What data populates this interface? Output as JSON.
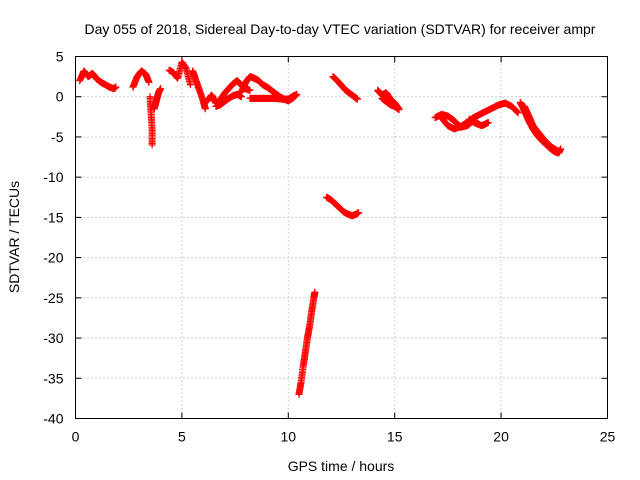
{
  "chart_data": {
    "type": "scatter",
    "title": "Day 055 of 2018, Sidereal Day-to-day VTEC variation (SDTVAR) for receiver ampr",
    "xlabel": "GPS time / hours",
    "ylabel": "SDTVAR / TECUs",
    "xlim": [
      0,
      25
    ],
    "ylim": [
      -40,
      5
    ],
    "xticks": [
      0,
      5,
      10,
      15,
      20,
      25
    ],
    "yticks": [
      5,
      0,
      -5,
      -10,
      -15,
      -20,
      -25,
      -30,
      -35,
      -40
    ],
    "xtick_labels": [
      "0",
      "5",
      "10",
      "15",
      "20",
      "25"
    ],
    "ytick_labels": [
      "5",
      "0",
      "-5",
      "-10",
      "-15",
      "-20",
      "-25",
      "-30",
      "-35",
      "-40"
    ],
    "grid": true,
    "marker": "+",
    "color": "#ff0000",
    "segments": [
      {
        "name": "arc-1",
        "x": [
          0.2,
          0.4,
          0.6,
          0.8,
          1.0,
          1.2,
          1.4,
          1.6,
          1.8,
          1.9
        ],
        "y": [
          2.0,
          3.2,
          2.5,
          2.9,
          2.2,
          1.8,
          1.5,
          1.2,
          1.0,
          1.2
        ]
      },
      {
        "name": "arc-2",
        "x": [
          2.7,
          2.9,
          3.1,
          3.3,
          3.45
        ],
        "y": [
          1.2,
          2.5,
          3.2,
          2.8,
          1.8
        ]
      },
      {
        "name": "arc-3",
        "x": [
          3.5,
          3.55,
          3.6,
          3.6
        ],
        "y": [
          0.0,
          -2.0,
          -4.0,
          -6.0
        ]
      },
      {
        "name": "arc-4",
        "x": [
          3.7,
          3.8,
          3.9,
          4.0
        ],
        "y": [
          -1.5,
          -0.5,
          0.5,
          1.0
        ]
      },
      {
        "name": "arc-5",
        "x": [
          4.4,
          4.6,
          4.8,
          5.0,
          5.2,
          5.4
        ],
        "y": [
          3.3,
          3.0,
          2.3,
          4.3,
          3.5,
          1.5
        ]
      },
      {
        "name": "arc-6",
        "x": [
          5.5,
          5.6,
          5.8,
          6.0,
          6.1
        ],
        "y": [
          3.2,
          2.5,
          1.0,
          -0.5,
          -1.5
        ]
      },
      {
        "name": "arc-7",
        "x": [
          6.2,
          6.4,
          6.6,
          6.8,
          7.0,
          7.2,
          7.4,
          7.6,
          7.8,
          8.0,
          8.2
        ],
        "y": [
          -0.5,
          0.2,
          -0.8,
          -0.4,
          0.4,
          1.0,
          1.6,
          2.0,
          1.4,
          1.0,
          0.8
        ]
      },
      {
        "name": "arc-8",
        "x": [
          6.6,
          6.8,
          7.0,
          7.2,
          7.4,
          7.6,
          7.8
        ],
        "y": [
          -1.2,
          -1.0,
          -0.6,
          -0.2,
          0.1,
          0.3,
          0.0
        ]
      },
      {
        "name": "arc-9",
        "x": [
          7.8,
          8.0,
          8.2,
          8.4,
          8.6,
          8.8,
          9.0,
          9.2,
          9.4,
          9.6
        ],
        "y": [
          0.6,
          1.8,
          2.5,
          2.3,
          2.0,
          1.5,
          1.2,
          0.8,
          0.4,
          0.0
        ]
      },
      {
        "name": "arc-10",
        "x": [
          8.2,
          8.5,
          8.8,
          9.1,
          9.4,
          9.7,
          10.0,
          10.3
        ],
        "y": [
          -0.2,
          -0.2,
          -0.2,
          -0.2,
          -0.2,
          -0.3,
          -0.3,
          0.2
        ]
      },
      {
        "name": "arc-11",
        "x": [
          9.6,
          9.8,
          10.0,
          10.2,
          10.4
        ],
        "y": [
          0.0,
          -0.3,
          -0.5,
          -0.2,
          0.3
        ]
      },
      {
        "name": "arc-12",
        "x": [
          10.5,
          10.6,
          10.7,
          10.8,
          10.9,
          11.0,
          11.1,
          11.2,
          11.25
        ],
        "y": [
          -37.0,
          -35.5,
          -33.5,
          -31.8,
          -30.0,
          -28.5,
          -26.7,
          -25.0,
          -24.3
        ]
      },
      {
        "name": "arc-13",
        "x": [
          11.8,
          12.0,
          12.2,
          12.4,
          12.6,
          12.8,
          13.0,
          13.2,
          13.3
        ],
        "y": [
          -12.5,
          -12.8,
          -13.3,
          -13.8,
          -14.3,
          -14.6,
          -14.8,
          -14.6,
          -14.4
        ]
      },
      {
        "name": "arc-14",
        "x": [
          12.1,
          12.3,
          12.5,
          12.7,
          12.9,
          13.1,
          13.25
        ],
        "y": [
          2.5,
          2.0,
          1.4,
          0.8,
          0.4,
          0.0,
          -0.3
        ]
      },
      {
        "name": "arc-15",
        "x": [
          14.2,
          14.4,
          14.6,
          14.8,
          15.0,
          15.2
        ],
        "y": [
          0.8,
          0.2,
          0.5,
          -0.3,
          -0.8,
          -1.5
        ]
      },
      {
        "name": "arc-16",
        "x": [
          14.4,
          14.6,
          14.8,
          15.0,
          15.2
        ],
        "y": [
          -0.2,
          -0.6,
          -1.0,
          -1.2,
          -1.6
        ]
      },
      {
        "name": "arc-17",
        "x": [
          16.9,
          17.2,
          17.5,
          17.8,
          18.1,
          18.4,
          18.7,
          19.0
        ],
        "y": [
          -2.6,
          -2.2,
          -2.4,
          -3.0,
          -3.8,
          -3.6,
          -3.0,
          -3.5
        ]
      },
      {
        "name": "arc-18",
        "x": [
          17.2,
          17.5,
          17.8,
          18.1,
          18.4,
          18.7,
          19.0,
          19.3,
          19.6,
          19.9,
          20.2,
          20.5,
          20.8
        ],
        "y": [
          -2.6,
          -3.6,
          -4.0,
          -3.7,
          -3.2,
          -2.6,
          -2.2,
          -1.8,
          -1.4,
          -1.0,
          -0.8,
          -1.2,
          -2.0
        ]
      },
      {
        "name": "arc-19",
        "x": [
          18.5,
          18.8,
          19.1,
          19.4
        ],
        "y": [
          -2.8,
          -3.3,
          -3.6,
          -3.2
        ]
      },
      {
        "name": "arc-20",
        "x": [
          20.9,
          21.1,
          21.3,
          21.5,
          21.7,
          21.9,
          22.1,
          22.3,
          22.5,
          22.7,
          22.8
        ],
        "y": [
          -0.7,
          -1.8,
          -3.0,
          -4.0,
          -4.8,
          -5.4,
          -5.9,
          -6.4,
          -6.8,
          -7.0,
          -6.5
        ]
      },
      {
        "name": "arc-21",
        "x": [
          21.1,
          21.3,
          21.5,
          21.8,
          22.1,
          22.4,
          22.7
        ],
        "y": [
          -1.2,
          -2.4,
          -3.6,
          -4.6,
          -5.6,
          -6.3,
          -6.8
        ]
      }
    ]
  }
}
